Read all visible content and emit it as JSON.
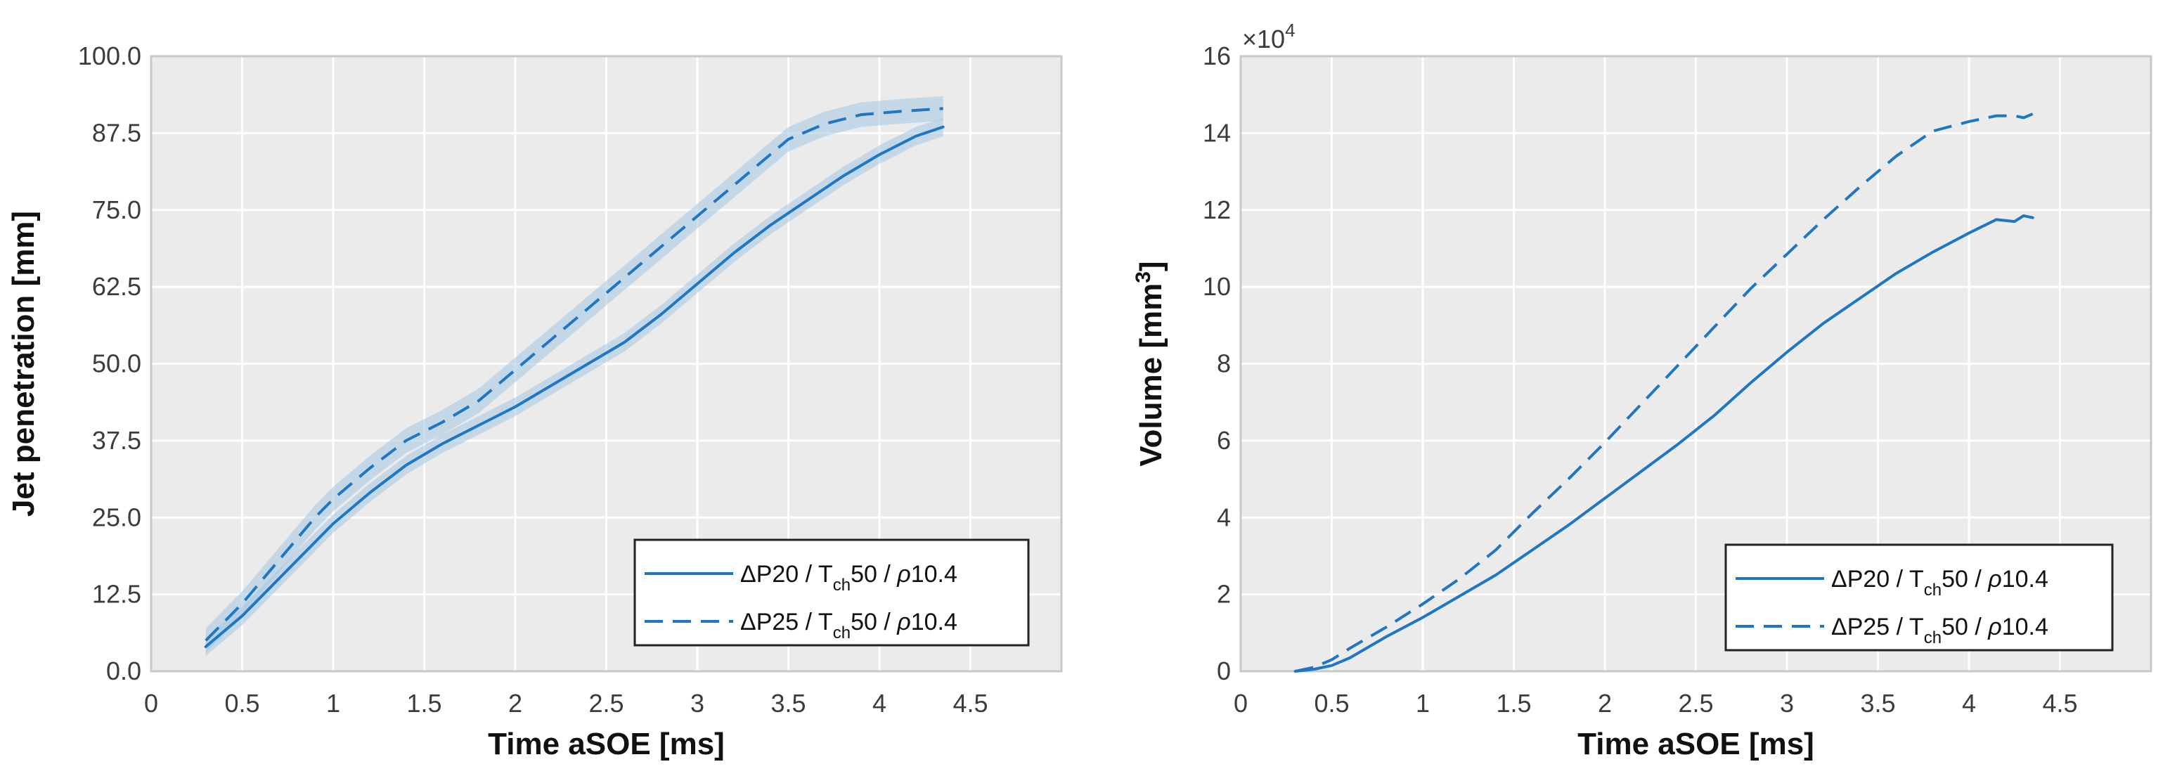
{
  "colors": {
    "line": "#1f77c4",
    "band": "#a9c9e4",
    "plot_bg": "#ebebeb",
    "grid": "#ffffff",
    "frame": "#c8c8c8",
    "legend_border": "#222222"
  },
  "chart_data": [
    {
      "type": "line",
      "title": "",
      "xlabel": "Time aSOE [ms]",
      "ylabel": "Jet penetration [mm]",
      "xlim": [
        0,
        5
      ],
      "ylim": [
        0,
        100
      ],
      "xticks": [
        0,
        0.5,
        1,
        1.5,
        2,
        2.5,
        3,
        3.5,
        4,
        4.5
      ],
      "xtick_labels": [
        "0",
        "0.5",
        "1",
        "1.5",
        "2",
        "2.5",
        "3",
        "3.5",
        "4",
        "4.5"
      ],
      "yticks": [
        0,
        12.5,
        25,
        37.5,
        50,
        62.5,
        75,
        87.5,
        100
      ],
      "ytick_labels": [
        "0.0",
        "12.5",
        "25.0",
        "37.5",
        "50.0",
        "62.5",
        "75.0",
        "87.5",
        "100.0"
      ],
      "legend_position": "bottom-right",
      "series": [
        {
          "name": "ΔP20 / Tch50 / ρ10.4",
          "legend": {
            "main": "ΔP20  / T",
            "sub": "ch",
            "rest": "50 / ",
            "rho": "ρ",
            "tail": "10.4"
          },
          "style": "solid",
          "band": 1.5,
          "x": [
            0.3,
            0.5,
            0.7,
            0.9,
            1.0,
            1.2,
            1.4,
            1.6,
            1.8,
            2.0,
            2.2,
            2.4,
            2.6,
            2.8,
            3.0,
            3.2,
            3.4,
            3.6,
            3.8,
            4.0,
            4.2,
            4.35
          ],
          "y": [
            4,
            9,
            15,
            21,
            24,
            29,
            33.5,
            37,
            40,
            43,
            46.5,
            50,
            53.5,
            58,
            63,
            68,
            72.5,
            76.5,
            80.5,
            84,
            87,
            88.5
          ]
        },
        {
          "name": "ΔP25 / Tch50 / ρ10.4",
          "legend": {
            "main": "ΔP25  / T",
            "sub": "ch",
            "rest": "50 / ",
            "rho": "ρ",
            "tail": "10.4"
          },
          "style": "dashed",
          "band": 2,
          "x": [
            0.3,
            0.5,
            0.7,
            0.9,
            1.0,
            1.2,
            1.4,
            1.6,
            1.8,
            2.0,
            2.2,
            2.4,
            2.6,
            2.8,
            3.0,
            3.2,
            3.4,
            3.5,
            3.7,
            3.9,
            4.1,
            4.35
          ],
          "y": [
            5,
            11,
            18,
            25,
            28,
            33,
            37.5,
            40.5,
            44,
            49,
            54,
            59,
            64,
            69,
            74,
            79,
            84,
            86.5,
            89,
            90.5,
            91,
            91.5
          ]
        }
      ]
    },
    {
      "type": "line",
      "title": "",
      "xlabel": "Time aSOE [ms]",
      "ylabel": "Volume [mm3]",
      "ylabel_parts": {
        "main": "Volume [mm",
        "sup": "3",
        "end": "]"
      },
      "y_multiplier": "×10",
      "y_multiplier_exp": "4",
      "xlim": [
        0,
        5
      ],
      "ylim": [
        0,
        16
      ],
      "xticks": [
        0,
        0.5,
        1,
        1.5,
        2,
        2.5,
        3,
        3.5,
        4,
        4.5
      ],
      "xtick_labels": [
        "0",
        "0.5",
        "1",
        "1.5",
        "2",
        "2.5",
        "3",
        "3.5",
        "4",
        "4.5"
      ],
      "yticks": [
        0,
        2,
        4,
        6,
        8,
        10,
        12,
        14,
        16
      ],
      "ytick_labels": [
        "0",
        "2",
        "4",
        "6",
        "8",
        "10",
        "12",
        "14",
        "16"
      ],
      "legend_position": "bottom-right",
      "series": [
        {
          "name": "ΔP20 / Tch50 / ρ10.4",
          "legend": {
            "main": "ΔP20  / T",
            "sub": "ch",
            "rest": "50 / ",
            "rho": "ρ",
            "tail": "10.4"
          },
          "style": "solid",
          "band": 0,
          "x": [
            0.3,
            0.4,
            0.5,
            0.6,
            0.8,
            1.0,
            1.2,
            1.4,
            1.6,
            1.8,
            2.0,
            2.2,
            2.4,
            2.6,
            2.8,
            3.0,
            3.2,
            3.4,
            3.6,
            3.8,
            4.0,
            4.15,
            4.25,
            4.3,
            4.35
          ],
          "y": [
            0,
            0.05,
            0.15,
            0.35,
            0.9,
            1.4,
            1.95,
            2.5,
            3.15,
            3.8,
            4.5,
            5.2,
            5.9,
            6.65,
            7.5,
            8.3,
            9.05,
            9.7,
            10.35,
            10.9,
            11.4,
            11.75,
            11.7,
            11.85,
            11.8
          ]
        },
        {
          "name": "ΔP25 / Tch50 / ρ10.4",
          "legend": {
            "main": "ΔP25  / T",
            "sub": "ch",
            "rest": "50 / ",
            "rho": "ρ",
            "tail": "10.4"
          },
          "style": "dashed",
          "band": 0,
          "x": [
            0.3,
            0.4,
            0.5,
            0.6,
            0.8,
            1.0,
            1.2,
            1.4,
            1.6,
            1.8,
            2.0,
            2.2,
            2.4,
            2.6,
            2.8,
            3.0,
            3.2,
            3.4,
            3.6,
            3.8,
            4.0,
            4.15,
            4.25,
            4.3,
            4.35
          ],
          "y": [
            0,
            0.1,
            0.3,
            0.6,
            1.15,
            1.75,
            2.4,
            3.15,
            4.1,
            5.0,
            5.95,
            6.95,
            7.95,
            8.95,
            9.95,
            10.85,
            11.75,
            12.6,
            13.4,
            14.05,
            14.3,
            14.45,
            14.45,
            14.4,
            14.5
          ]
        }
      ]
    }
  ]
}
